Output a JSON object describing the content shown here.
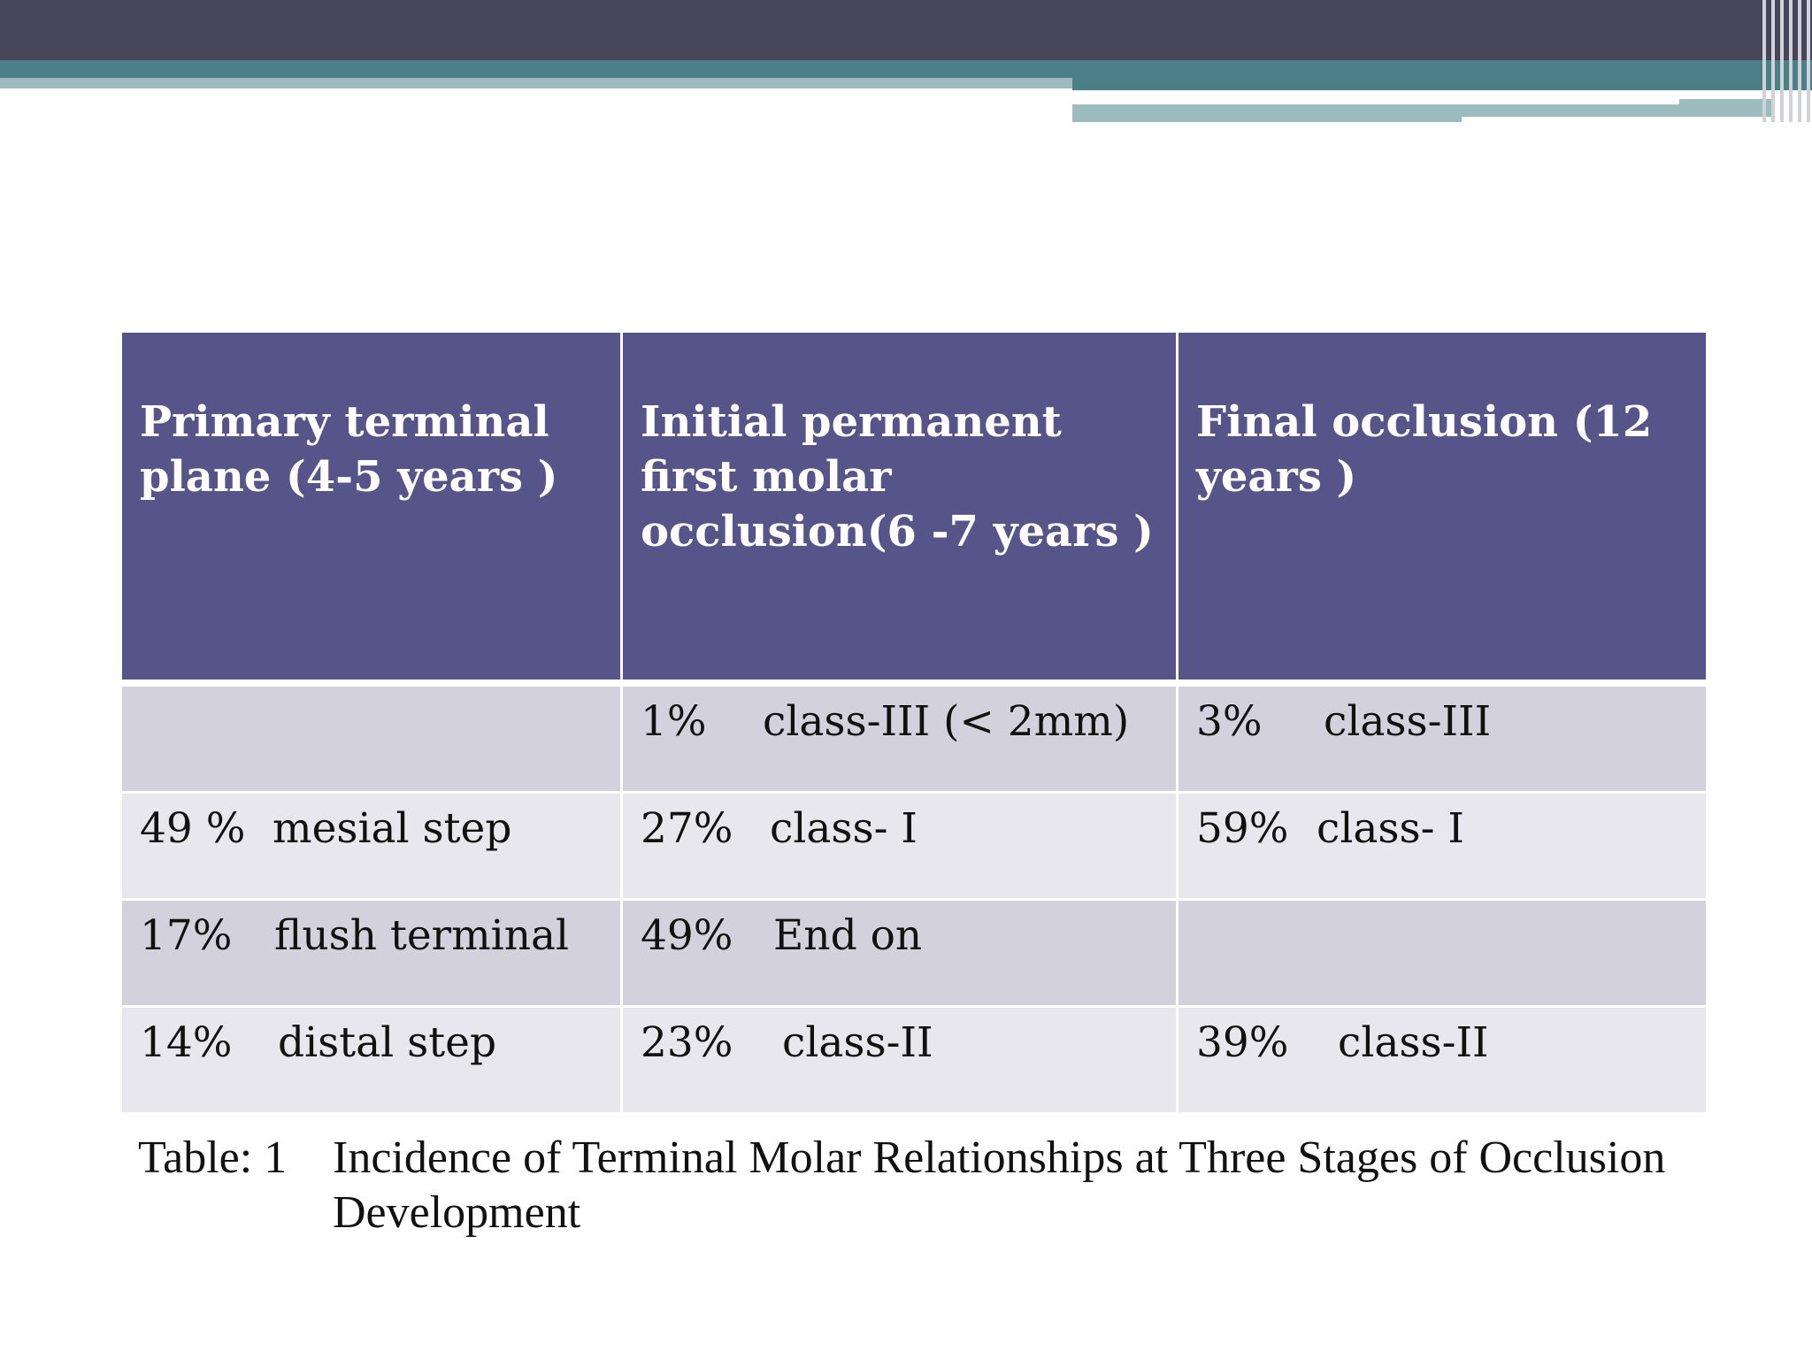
{
  "table": {
    "headers": [
      "Primary terminal plane (4-5 years )",
      "Initial permanent first molar occlusion(6 -7 years )",
      "Final occlusion (12 years )"
    ],
    "rows": [
      [
        {
          "pct": "",
          "label": ""
        },
        {
          "pct": "1%",
          "label": "class-III  (< 2mm)"
        },
        {
          "pct": "3%",
          "label": "class-III"
        }
      ],
      [
        {
          "pct": "49 %",
          "label": "mesial step"
        },
        {
          "pct": "27%",
          "label": "class- I"
        },
        {
          "pct": "59%",
          "label": "class- I"
        }
      ],
      [
        {
          "pct": "17%",
          "label": "flush terminal"
        },
        {
          "pct": "49%",
          "label": "End on"
        },
        {
          "pct": "",
          "label": ""
        }
      ],
      [
        {
          "pct": "14%",
          "label": "distal step"
        },
        {
          "pct": "23%",
          "label": "class-II"
        },
        {
          "pct": "39%",
          "label": "class-II"
        }
      ]
    ]
  },
  "caption": {
    "label": "Table: 1",
    "text": "Incidence of Terminal Molar Relationships at Three Stages of Occlusion Development"
  },
  "colors": {
    "header_bg": "#57548a",
    "row_dark": "#d2d1dc",
    "row_light": "#e9e7ee",
    "top_bar": "#474559",
    "accent_teal": "#4c8088"
  }
}
